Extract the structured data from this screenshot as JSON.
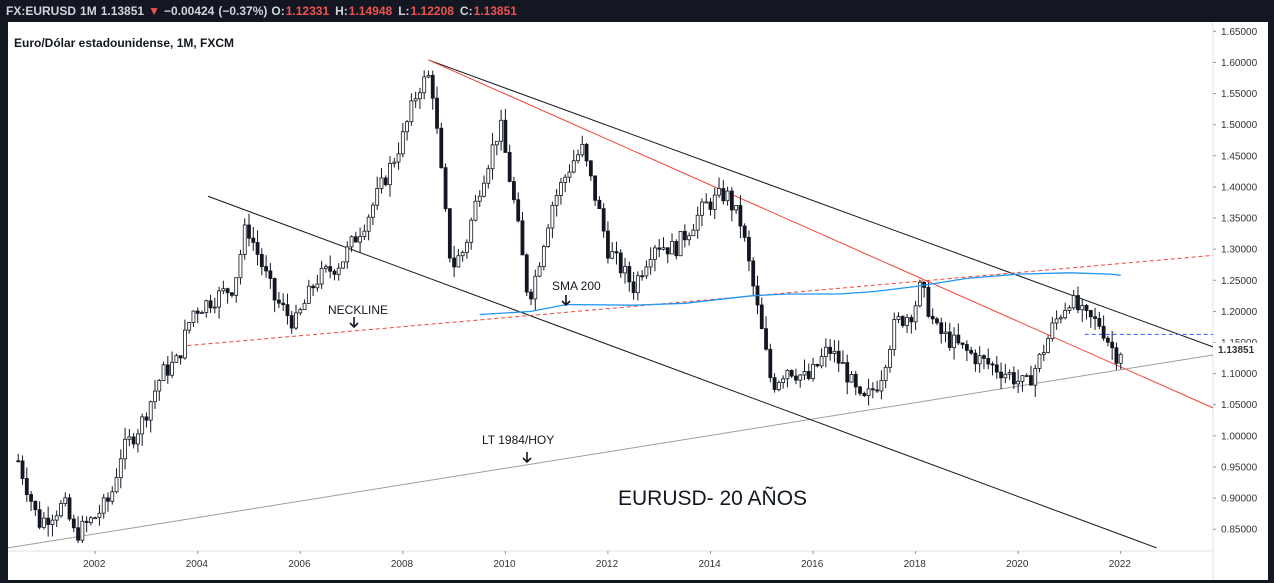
{
  "header": {
    "symbol": "FX:EURUSD",
    "interval": "1M",
    "last": "1.13851",
    "change": "−0.00424",
    "change_pct": "(−0.37%)",
    "o_label": "O:",
    "o_value": "1.12331",
    "h_label": "H:",
    "h_value": "1.14948",
    "l_label": "L:",
    "l_value": "1.12208",
    "c_label": "C:",
    "c_value": "1.13851",
    "down_icon": "triangle-down-icon",
    "down_color": "#ef5350"
  },
  "chart_data": {
    "type": "candlestick",
    "title": "Euro/Dólar estadounidense, 1M, FXCM",
    "subtitle": "",
    "xlabel": "",
    "ylabel": "",
    "x_ticks": [
      "2002",
      "2004",
      "2006",
      "2008",
      "2010",
      "2012",
      "2014",
      "2016",
      "2018",
      "2020",
      "2022"
    ],
    "y_ticks": [
      "1.65000",
      "1.60000",
      "1.55000",
      "1.50000",
      "1.45000",
      "1.40000",
      "1.35000",
      "1.30000",
      "1.25000",
      "1.20000",
      "1.15000",
      "1.10000",
      "1.05000",
      "1.00000",
      "0.95000",
      "0.90000",
      "0.85000"
    ],
    "xlim": [
      2000.3,
      2023.8
    ],
    "ylim": [
      0.815,
      1.665
    ],
    "last_price_label": "1.13851",
    "annotations": {
      "big_label": "EURUSD- 20 AÑOS",
      "neckline": "NECKLINE",
      "sma": "SMA 200",
      "trend": "LT 1984/HOY"
    },
    "price_path": [
      [
        2000.5,
        0.96
      ],
      [
        2000.9,
        0.86
      ],
      [
        2001.4,
        0.89
      ],
      [
        2001.6,
        0.84
      ],
      [
        2002.0,
        0.87
      ],
      [
        2002.3,
        0.9
      ],
      [
        2002.5,
        0.97
      ],
      [
        2002.9,
        1.02
      ],
      [
        2003.3,
        1.1
      ],
      [
        2003.6,
        1.12
      ],
      [
        2003.9,
        1.2
      ],
      [
        2004.3,
        1.22
      ],
      [
        2004.7,
        1.24
      ],
      [
        2004.95,
        1.34
      ],
      [
        2005.5,
        1.22
      ],
      [
        2005.9,
        1.18
      ],
      [
        2006.3,
        1.25
      ],
      [
        2006.8,
        1.28
      ],
      [
        2007.3,
        1.35
      ],
      [
        2007.8,
        1.44
      ],
      [
        2008.0,
        1.48
      ],
      [
        2008.3,
        1.56
      ],
      [
        2008.55,
        1.58
      ],
      [
        2008.85,
        1.34
      ],
      [
        2008.95,
        1.27
      ],
      [
        2009.2,
        1.3
      ],
      [
        2009.5,
        1.4
      ],
      [
        2009.9,
        1.5
      ],
      [
        2010.2,
        1.36
      ],
      [
        2010.45,
        1.22
      ],
      [
        2010.6,
        1.26
      ],
      [
        2010.9,
        1.37
      ],
      [
        2011.3,
        1.44
      ],
      [
        2011.5,
        1.46
      ],
      [
        2011.8,
        1.37
      ],
      [
        2012.0,
        1.3
      ],
      [
        2012.5,
        1.24
      ],
      [
        2012.9,
        1.31
      ],
      [
        2013.3,
        1.3
      ],
      [
        2013.9,
        1.37
      ],
      [
        2014.3,
        1.39
      ],
      [
        2014.6,
        1.34
      ],
      [
        2014.9,
        1.21
      ],
      [
        2015.2,
        1.08
      ],
      [
        2015.5,
        1.11
      ],
      [
        2015.9,
        1.09
      ],
      [
        2016.3,
        1.14
      ],
      [
        2016.6,
        1.11
      ],
      [
        2016.95,
        1.05
      ],
      [
        2017.3,
        1.09
      ],
      [
        2017.6,
        1.18
      ],
      [
        2017.95,
        1.2
      ],
      [
        2018.1,
        1.24
      ],
      [
        2018.4,
        1.17
      ],
      [
        2018.9,
        1.14
      ],
      [
        2019.3,
        1.12
      ],
      [
        2019.8,
        1.1
      ],
      [
        2020.15,
        1.08
      ],
      [
        2020.4,
        1.12
      ],
      [
        2020.7,
        1.18
      ],
      [
        2021.0,
        1.22
      ],
      [
        2021.3,
        1.19
      ],
      [
        2021.6,
        1.18
      ],
      [
        2021.9,
        1.13
      ],
      [
        2022.0,
        1.1385
      ]
    ],
    "sma_200": [
      [
        2009.5,
        1.195
      ],
      [
        2010.5,
        1.2
      ],
      [
        2011.2,
        1.211
      ],
      [
        2012.5,
        1.21
      ],
      [
        2013.5,
        1.213
      ],
      [
        2014.8,
        1.225
      ],
      [
        2015.5,
        1.228
      ],
      [
        2016.5,
        1.228
      ],
      [
        2017.2,
        1.232
      ],
      [
        2018.0,
        1.24
      ],
      [
        2019.0,
        1.253
      ],
      [
        2020.0,
        1.26
      ],
      [
        2021.0,
        1.262
      ],
      [
        2021.8,
        1.26
      ],
      [
        2022.0,
        1.258
      ]
    ],
    "lines": {
      "upper_channel": [
        [
          2008.5,
          1.604
        ],
        [
          2023.8,
          1.143
        ]
      ],
      "lower_channel": [
        [
          2004.2,
          1.385
        ],
        [
          2022.7,
          0.82
        ]
      ],
      "red_trend": [
        [
          2008.5,
          1.604
        ],
        [
          2023.8,
          1.045
        ]
      ],
      "neckline": [
        [
          2003.8,
          1.145
        ],
        [
          2023.8,
          1.29
        ]
      ],
      "lt_1984": [
        [
          2000.3,
          0.82
        ],
        [
          2023.8,
          1.13
        ]
      ],
      "resistance_dashed": [
        [
          2021.3,
          1.163
        ],
        [
          2023.8,
          1.163
        ]
      ]
    },
    "colors": {
      "up": "#131722",
      "down": "#131722",
      "up_body": "#ffffff",
      "sma": "#2196f3",
      "red": "#f44336",
      "neckline": "#f44336",
      "channel": "#131722",
      "lt": "#9e9e9e",
      "dashed_blue": "#2962ff"
    },
    "grid": false,
    "legend": "none"
  }
}
